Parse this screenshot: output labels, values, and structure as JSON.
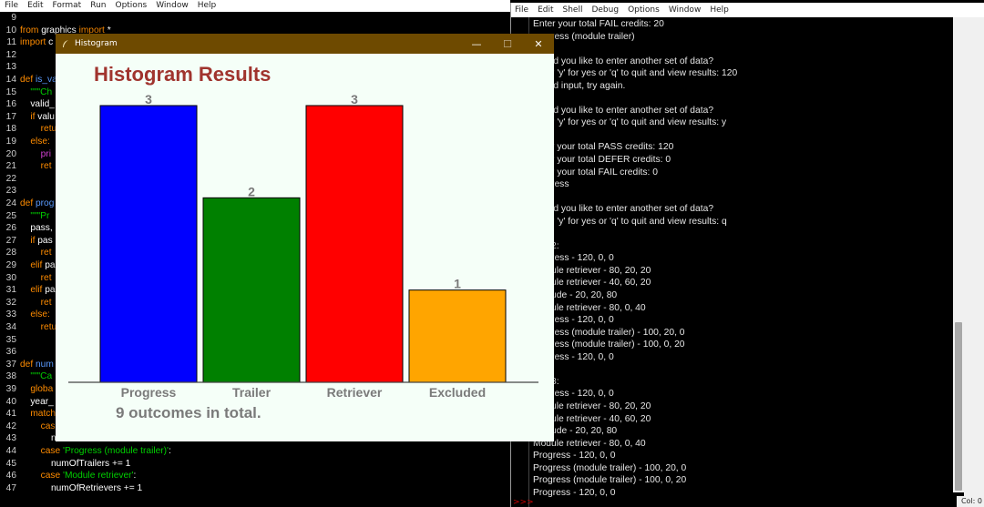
{
  "editor": {
    "menu": [
      "File",
      "Edit",
      "Format",
      "Run",
      "Options",
      "Window",
      "Help"
    ],
    "lines": [
      {
        "n": "9",
        "html": ""
      },
      {
        "n": "10",
        "parts": [
          [
            "kw",
            "from "
          ],
          [
            "pl",
            "graphics "
          ],
          [
            "kw",
            "import "
          ],
          [
            "pl",
            "*"
          ]
        ]
      },
      {
        "n": "11",
        "parts": [
          [
            "kw",
            "import "
          ],
          [
            "pl",
            "c"
          ]
        ]
      },
      {
        "n": "12",
        "parts": []
      },
      {
        "n": "13",
        "parts": []
      },
      {
        "n": "14",
        "parts": [
          [
            "kw",
            "def "
          ],
          [
            "fn",
            "is_va"
          ]
        ]
      },
      {
        "n": "15",
        "parts": [
          [
            "str",
            "    \"\"\"Ch"
          ]
        ]
      },
      {
        "n": "16",
        "parts": [
          [
            "pl",
            "    valid_"
          ]
        ]
      },
      {
        "n": "17",
        "parts": [
          [
            "kw",
            "    if "
          ],
          [
            "pl",
            "valu"
          ]
        ]
      },
      {
        "n": "18",
        "parts": [
          [
            "kw",
            "        retu"
          ]
        ]
      },
      {
        "n": "19",
        "parts": [
          [
            "kw",
            "    else:"
          ]
        ]
      },
      {
        "n": "20",
        "parts": [
          [
            "prn",
            "        pri"
          ]
        ]
      },
      {
        "n": "21",
        "parts": [
          [
            "kw",
            "        ret"
          ]
        ]
      },
      {
        "n": "22",
        "parts": []
      },
      {
        "n": "23",
        "parts": []
      },
      {
        "n": "24",
        "parts": [
          [
            "kw",
            "def "
          ],
          [
            "fn",
            "prog"
          ]
        ]
      },
      {
        "n": "25",
        "parts": [
          [
            "str",
            "    \"\"\"Pr"
          ]
        ]
      },
      {
        "n": "26",
        "parts": [
          [
            "pl",
            "    pass, "
          ]
        ]
      },
      {
        "n": "27",
        "parts": [
          [
            "kw",
            "    if "
          ],
          [
            "pl",
            "pas"
          ]
        ]
      },
      {
        "n": "28",
        "parts": [
          [
            "kw",
            "        ret"
          ]
        ]
      },
      {
        "n": "29",
        "parts": [
          [
            "kw",
            "    elif "
          ],
          [
            "pl",
            "pa"
          ]
        ]
      },
      {
        "n": "30",
        "parts": [
          [
            "kw",
            "        ret"
          ]
        ]
      },
      {
        "n": "31",
        "parts": [
          [
            "kw",
            "    elif "
          ],
          [
            "pl",
            "pa"
          ]
        ]
      },
      {
        "n": "32",
        "parts": [
          [
            "kw",
            "        ret"
          ]
        ]
      },
      {
        "n": "33",
        "parts": [
          [
            "kw",
            "    else:"
          ]
        ]
      },
      {
        "n": "34",
        "parts": [
          [
            "kw",
            "        retu"
          ]
        ]
      },
      {
        "n": "35",
        "parts": []
      },
      {
        "n": "36",
        "parts": []
      },
      {
        "n": "37",
        "parts": [
          [
            "kw",
            "def "
          ],
          [
            "fn",
            "num"
          ]
        ]
      },
      {
        "n": "38",
        "parts": [
          [
            "str",
            "    \"\"\"Ca"
          ]
        ]
      },
      {
        "n": "39",
        "parts": [
          [
            "kw",
            "    globa"
          ]
        ]
      },
      {
        "n": "40",
        "parts": [
          [
            "pl",
            "    year_"
          ]
        ]
      },
      {
        "n": "41",
        "parts": [
          [
            "kw",
            "    match"
          ]
        ]
      },
      {
        "n": "42",
        "parts": [
          [
            "kw",
            "        cas"
          ]
        ]
      },
      {
        "n": "43",
        "parts": [
          [
            "pl",
            "            n"
          ]
        ]
      },
      {
        "n": "44",
        "parts": [
          [
            "kw",
            "        case "
          ],
          [
            "str",
            "'Progress (module trailer)'"
          ],
          [
            "pl",
            ":"
          ]
        ]
      },
      {
        "n": "45",
        "parts": [
          [
            "pl",
            "            numOfTrailers += 1"
          ]
        ]
      },
      {
        "n": "46",
        "parts": [
          [
            "kw",
            "        case "
          ],
          [
            "str",
            "'Module retriever'"
          ],
          [
            "pl",
            ":"
          ]
        ]
      },
      {
        "n": "47",
        "parts": [
          [
            "pl",
            "            numOfRetrievers += 1"
          ]
        ]
      }
    ]
  },
  "shell": {
    "menu": [
      "File",
      "Edit",
      "Shell",
      "Debug",
      "Options",
      "Window",
      "Help"
    ],
    "lines": [
      "Enter your total FAIL credits: 20",
      "       ress (module trailer)",
      "",
      "       ld you like to enter another set of data?",
      "       r 'y' for yes or 'q' to quit and view results: 120",
      "       id input, try again.",
      "",
      "       ld you like to enter another set of data?",
      "       r 'y' for yes or 'q' to quit and view results: y",
      "",
      "       r your total PASS credits: 120",
      "       r your total DEFER credits: 0",
      "       r your total FAIL credits: 0",
      "       ress",
      "",
      "       ld you like to enter another set of data?",
      "       r 'y' for yes or 'q' to quit and view results: q",
      "",
      "       2:",
      "       ress - 120, 0, 0",
      "       ule retriever - 80, 20, 20",
      "       ule retriever - 40, 60, 20",
      "       ude - 20, 20, 80",
      "       ule retriever - 80, 0, 40",
      "       ress - 120, 0, 0",
      "       ress (module trailer) - 100, 20, 0",
      "       ress (module trailer) - 100, 0, 20",
      "       ress - 120, 0, 0",
      "",
      "       3:",
      "       ress - 120, 0, 0",
      "       ule retriever - 80, 20, 20",
      "       ule retriever - 40, 60, 20",
      "       ude - 20, 20, 80",
      "Module retriever - 80, 0, 40",
      "Progress - 120, 0, 0",
      "Progress (module trailer) - 100, 20, 0",
      "Progress (module trailer) - 100, 0, 20",
      "Progress - 120, 0, 0"
    ],
    "prompt": ">>>",
    "status": "Col: 0"
  },
  "histogram": {
    "window_title": "Histogram",
    "minimize": "—",
    "maximize": "☐",
    "close": "✕",
    "heading": "Histogram Results",
    "total_text": "9 outcomes in total.",
    "chart_data": {
      "type": "bar",
      "categories": [
        "Progress",
        "Trailer",
        "Retriever",
        "Excluded"
      ],
      "values": [
        3,
        2,
        3,
        1
      ],
      "colors": [
        "#0000ff",
        "#008000",
        "#ff0000",
        "#ffa500"
      ],
      "title": "Histogram Results",
      "xlabel": "",
      "ylabel": "",
      "ylim": [
        0,
        3
      ],
      "grid": false
    }
  }
}
